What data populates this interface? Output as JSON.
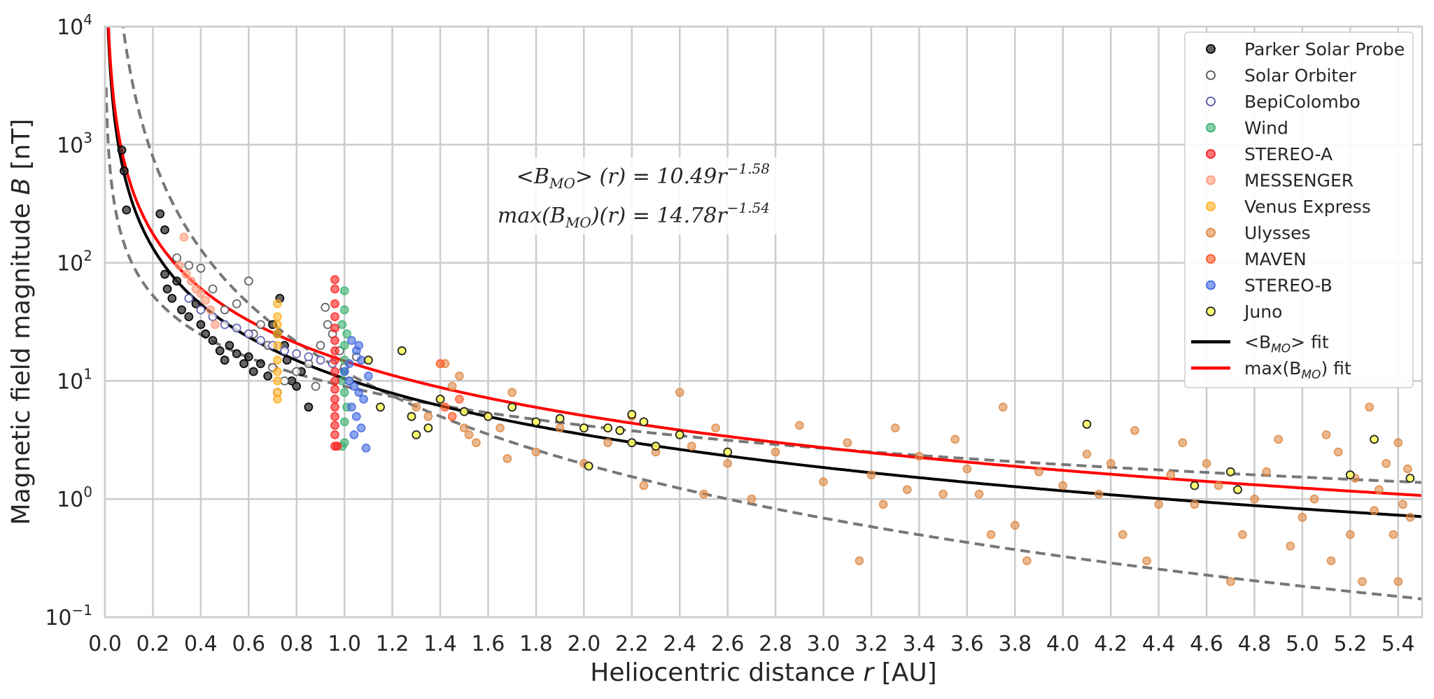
{
  "chart_data": {
    "type": "scatter",
    "xlabel": {
      "text": "Heliocentric distance ",
      "var": "r",
      "unit": " [AU]"
    },
    "ylabel": {
      "text": "Magnetic field magnitude ",
      "var": "B",
      "unit": " [nT]"
    },
    "xlim": [
      0.0,
      5.5
    ],
    "ylim": [
      0.1,
      10000
    ],
    "yscale": "log",
    "grid": true,
    "legend_position": "top-right",
    "x_ticks": [
      "0.0",
      "0.2",
      "0.4",
      "0.6",
      "0.8",
      "1.0",
      "1.2",
      "1.4",
      "1.6",
      "1.8",
      "2.0",
      "2.2",
      "2.4",
      "2.6",
      "2.8",
      "3.0",
      "3.2",
      "3.4",
      "3.6",
      "3.8",
      "4.0",
      "4.2",
      "4.4",
      "4.6",
      "4.8",
      "5.0",
      "5.2",
      "5.4"
    ],
    "y_ticks": [
      {
        "value": 0.1,
        "base": "10",
        "exp": "−1"
      },
      {
        "value": 1,
        "base": "10",
        "exp": "0"
      },
      {
        "value": 10,
        "base": "10",
        "exp": "1"
      },
      {
        "value": 100,
        "base": "10",
        "exp": "2"
      },
      {
        "value": 1000,
        "base": "10",
        "exp": "3"
      },
      {
        "value": 10000,
        "base": "10",
        "exp": "4"
      }
    ],
    "annotations": [
      {
        "text": "<B_MO>(r) = 10.49r^−1.58",
        "lhs": "<B",
        "sub": "MO",
        "mid": "> (r) = 10.49r",
        "sup": "−1.58"
      },
      {
        "text": "max(B_MO)(r) = 14.78r^−1.54",
        "lhs": "max(B",
        "sub": "MO",
        "mid": ")(r) = 14.78r",
        "sup": "−1.54"
      }
    ],
    "series": [
      {
        "name": "Parker Solar Probe",
        "color": "#333333",
        "edge": "#000000",
        "alpha": 0.75,
        "filled": true,
        "points": [
          [
            0.07,
            900
          ],
          [
            0.08,
            600
          ],
          [
            0.09,
            280
          ],
          [
            0.23,
            260
          ],
          [
            0.25,
            190
          ],
          [
            0.25,
            80
          ],
          [
            0.26,
            60
          ],
          [
            0.28,
            50
          ],
          [
            0.3,
            70
          ],
          [
            0.32,
            40
          ],
          [
            0.35,
            35
          ],
          [
            0.38,
            45
          ],
          [
            0.4,
            30
          ],
          [
            0.42,
            25
          ],
          [
            0.45,
            22
          ],
          [
            0.48,
            18
          ],
          [
            0.5,
            15
          ],
          [
            0.52,
            20
          ],
          [
            0.55,
            17
          ],
          [
            0.58,
            14
          ],
          [
            0.6,
            16
          ],
          [
            0.62,
            12
          ],
          [
            0.65,
            14
          ],
          [
            0.68,
            11
          ],
          [
            0.7,
            30
          ],
          [
            0.72,
            25
          ],
          [
            0.73,
            50
          ],
          [
            0.75,
            20
          ],
          [
            0.76,
            15
          ],
          [
            0.78,
            10
          ],
          [
            0.8,
            9
          ],
          [
            0.82,
            12
          ],
          [
            0.85,
            6
          ]
        ]
      },
      {
        "name": "Solar Orbiter",
        "color": "#ffffff",
        "edge": "#555555",
        "alpha": 0.9,
        "filled": false,
        "points": [
          [
            0.3,
            110
          ],
          [
            0.35,
            95
          ],
          [
            0.4,
            90
          ],
          [
            0.45,
            60
          ],
          [
            0.5,
            40
          ],
          [
            0.55,
            45
          ],
          [
            0.6,
            70
          ],
          [
            0.62,
            25
          ],
          [
            0.65,
            30
          ],
          [
            0.68,
            20
          ],
          [
            0.7,
            13
          ],
          [
            0.72,
            8
          ],
          [
            0.75,
            10
          ],
          [
            0.8,
            12
          ],
          [
            0.85,
            14
          ],
          [
            0.88,
            9
          ],
          [
            0.9,
            20
          ],
          [
            0.92,
            42
          ],
          [
            0.93,
            30
          ],
          [
            0.95,
            25
          ],
          [
            0.98,
            18
          ],
          [
            1.0,
            13
          ],
          [
            1.02,
            10
          ],
          [
            1.05,
            16
          ]
        ]
      },
      {
        "name": "BepiColombo",
        "color": "#ffffff",
        "edge": "#5555aa",
        "alpha": 0.9,
        "filled": false,
        "points": [
          [
            0.35,
            50
          ],
          [
            0.4,
            40
          ],
          [
            0.45,
            35
          ],
          [
            0.5,
            30
          ],
          [
            0.55,
            28
          ],
          [
            0.6,
            25
          ],
          [
            0.65,
            22
          ],
          [
            0.7,
            20
          ],
          [
            0.75,
            18
          ],
          [
            0.8,
            17
          ],
          [
            0.85,
            16
          ],
          [
            0.9,
            15
          ],
          [
            0.95,
            14
          ]
        ]
      },
      {
        "name": "Wind",
        "color": "#3cb371",
        "edge": "#3cb371",
        "alpha": 0.6,
        "filled": true,
        "points": [
          [
            1.0,
            58
          ],
          [
            1.0,
            40
          ],
          [
            0.99,
            30
          ],
          [
            1.01,
            25
          ],
          [
            1.0,
            20
          ],
          [
            1.0,
            15
          ],
          [
            1.0,
            12
          ],
          [
            0.99,
            10
          ],
          [
            1.0,
            8
          ],
          [
            1.01,
            6
          ],
          [
            1.0,
            4.5
          ],
          [
            1.0,
            3
          ],
          [
            0.99,
            2.8
          ]
        ]
      },
      {
        "name": "STEREO-A",
        "color": "#ff2020",
        "edge": "#ff2020",
        "alpha": 0.6,
        "filled": true,
        "points": [
          [
            0.96,
            72
          ],
          [
            0.96,
            60
          ],
          [
            0.96,
            45
          ],
          [
            0.96,
            35
          ],
          [
            0.96,
            28
          ],
          [
            0.96,
            22
          ],
          [
            0.96,
            18
          ],
          [
            0.96,
            15
          ],
          [
            0.96,
            12
          ],
          [
            0.96,
            10
          ],
          [
            0.96,
            8.5
          ],
          [
            0.96,
            7
          ],
          [
            0.96,
            6
          ],
          [
            0.96,
            5
          ],
          [
            0.96,
            4.2
          ],
          [
            0.96,
            3.5
          ],
          [
            0.96,
            2.8
          ],
          [
            0.97,
            2.8
          ]
        ]
      },
      {
        "name": "MESSENGER",
        "color": "#ff9a7a",
        "edge": "#ff9a7a",
        "alpha": 0.6,
        "filled": true,
        "points": [
          [
            0.33,
            165
          ],
          [
            0.31,
            95
          ],
          [
            0.34,
            80
          ],
          [
            0.36,
            70
          ],
          [
            0.38,
            60
          ],
          [
            0.4,
            55
          ],
          [
            0.42,
            48
          ],
          [
            0.44,
            40
          ],
          [
            0.46,
            30
          ]
        ]
      },
      {
        "name": "Venus Express",
        "color": "#ffb020",
        "edge": "#ffb020",
        "alpha": 0.6,
        "filled": true,
        "points": [
          [
            0.72,
            45
          ],
          [
            0.72,
            35
          ],
          [
            0.72,
            30
          ],
          [
            0.72,
            25
          ],
          [
            0.72,
            20
          ],
          [
            0.72,
            15
          ],
          [
            0.72,
            12
          ],
          [
            0.72,
            10
          ],
          [
            0.72,
            8
          ],
          [
            0.72,
            7
          ]
        ]
      },
      {
        "name": "Ulysses",
        "color": "#dd8844",
        "edge": "#dd8844",
        "alpha": 0.6,
        "filled": true,
        "points": [
          [
            1.3,
            6
          ],
          [
            1.35,
            5
          ],
          [
            1.4,
            7
          ],
          [
            1.42,
            14
          ],
          [
            1.45,
            9
          ],
          [
            1.48,
            11
          ],
          [
            1.5,
            4
          ],
          [
            1.52,
            3.5
          ],
          [
            1.55,
            3
          ],
          [
            1.6,
            5
          ],
          [
            1.65,
            4
          ],
          [
            1.68,
            2.2
          ],
          [
            1.7,
            8
          ],
          [
            1.8,
            2.5
          ],
          [
            1.9,
            4
          ],
          [
            2.0,
            2
          ],
          [
            2.1,
            3
          ],
          [
            2.2,
            5
          ],
          [
            2.25,
            1.3
          ],
          [
            2.3,
            2.5
          ],
          [
            2.4,
            8
          ],
          [
            2.45,
            2.8
          ],
          [
            2.5,
            1.1
          ],
          [
            2.55,
            4
          ],
          [
            2.6,
            2
          ],
          [
            2.7,
            1
          ],
          [
            2.8,
            2.5
          ],
          [
            2.9,
            4.2
          ],
          [
            3.0,
            1.4
          ],
          [
            3.1,
            3
          ],
          [
            3.15,
            0.3
          ],
          [
            3.2,
            1.6
          ],
          [
            3.25,
            0.9
          ],
          [
            3.3,
            4
          ],
          [
            3.35,
            1.2
          ],
          [
            3.4,
            2.3
          ],
          [
            3.5,
            1.1
          ],
          [
            3.55,
            3.2
          ],
          [
            3.6,
            1.8
          ],
          [
            3.65,
            1.1
          ],
          [
            3.7,
            0.5
          ],
          [
            3.75,
            6
          ],
          [
            3.8,
            0.6
          ],
          [
            3.85,
            0.3
          ],
          [
            3.9,
            1.7
          ],
          [
            4.0,
            1.3
          ],
          [
            4.1,
            2.4
          ],
          [
            4.15,
            1.1
          ],
          [
            4.2,
            2
          ],
          [
            4.25,
            0.5
          ],
          [
            4.3,
            3.8
          ],
          [
            4.35,
            0.3
          ],
          [
            4.4,
            0.9
          ],
          [
            4.45,
            1.6
          ],
          [
            4.5,
            3
          ],
          [
            4.55,
            0.9
          ],
          [
            4.6,
            2
          ],
          [
            4.65,
            1.3
          ],
          [
            4.7,
            0.2
          ],
          [
            4.75,
            0.5
          ],
          [
            4.8,
            1
          ],
          [
            4.85,
            1.7
          ],
          [
            4.9,
            3.2
          ],
          [
            4.95,
            0.4
          ],
          [
            5.0,
            0.7
          ],
          [
            5.05,
            1
          ],
          [
            5.1,
            3.5
          ],
          [
            5.12,
            0.3
          ],
          [
            5.15,
            2.5
          ],
          [
            5.2,
            0.5
          ],
          [
            5.22,
            1.5
          ],
          [
            5.25,
            0.2
          ],
          [
            5.28,
            6
          ],
          [
            5.3,
            0.8
          ],
          [
            5.32,
            1.2
          ],
          [
            5.35,
            2
          ],
          [
            5.38,
            0.5
          ],
          [
            5.4,
            3
          ],
          [
            5.42,
            0.9
          ],
          [
            5.44,
            1.8
          ],
          [
            5.45,
            0.7
          ],
          [
            5.4,
            0.2
          ]
        ]
      },
      {
        "name": "MAVEN",
        "color": "#ff5522",
        "edge": "#ff5522",
        "alpha": 0.6,
        "filled": true,
        "points": [
          [
            1.4,
            14
          ],
          [
            1.42,
            6
          ],
          [
            1.45,
            5
          ],
          [
            1.48,
            7
          ]
        ]
      },
      {
        "name": "STEREO-B",
        "color": "#4169e1",
        "edge": "#4169e1",
        "alpha": 0.6,
        "filled": true,
        "points": [
          [
            1.03,
            22
          ],
          [
            1.05,
            18
          ],
          [
            1.07,
            15
          ],
          [
            1.0,
            12
          ],
          [
            1.02,
            10
          ],
          [
            1.04,
            9
          ],
          [
            1.06,
            8
          ],
          [
            1.08,
            7
          ],
          [
            1.03,
            6
          ],
          [
            1.05,
            5
          ],
          [
            1.07,
            4
          ],
          [
            1.04,
            3.5
          ],
          [
            1.09,
            2.7
          ],
          [
            1.1,
            11
          ],
          [
            1.06,
            20
          ],
          [
            1.02,
            14
          ]
        ]
      },
      {
        "name": "Juno",
        "color": "#ffff66",
        "edge": "#222222",
        "alpha": 0.9,
        "filled": true,
        "points": [
          [
            1.1,
            15
          ],
          [
            1.15,
            6
          ],
          [
            1.24,
            18
          ],
          [
            1.28,
            5
          ],
          [
            1.3,
            3.5
          ],
          [
            1.35,
            4
          ],
          [
            1.4,
            7
          ],
          [
            1.5,
            5.5
          ],
          [
            1.6,
            5
          ],
          [
            1.7,
            6
          ],
          [
            1.8,
            4.5
          ],
          [
            1.9,
            4.8
          ],
          [
            2.0,
            4
          ],
          [
            2.02,
            1.9
          ],
          [
            2.1,
            4
          ],
          [
            2.15,
            3.8
          ],
          [
            2.2,
            5.2
          ],
          [
            2.2,
            3
          ],
          [
            2.25,
            4.5
          ],
          [
            2.3,
            2.8
          ],
          [
            2.4,
            3.5
          ],
          [
            2.6,
            2.5
          ],
          [
            4.1,
            4.3
          ],
          [
            4.55,
            1.3
          ],
          [
            4.7,
            1.7
          ],
          [
            4.73,
            1.2
          ],
          [
            5.2,
            1.6
          ],
          [
            5.3,
            3.2
          ],
          [
            5.45,
            1.5
          ]
        ]
      }
    ],
    "fits": [
      {
        "name": "<B_MO> fit",
        "legend_lhs": "<B",
        "legend_sub": "MO",
        "legend_rhs": "> fit",
        "a": 10.49,
        "b": -1.58,
        "color": "#000000",
        "dash": false
      },
      {
        "name": "max(B_MO) fit",
        "legend_lhs": "max(B",
        "legend_sub": "MO",
        "legend_rhs": ") fit",
        "a": 14.78,
        "b": -1.54,
        "color": "#ff0000",
        "dash": false
      }
    ],
    "dashed_curves": [
      {
        "kind": "power",
        "a": 9.0,
        "b": -1.1
      },
      {
        "kind": "power",
        "a": 12.0,
        "b": -2.6
      }
    ]
  }
}
